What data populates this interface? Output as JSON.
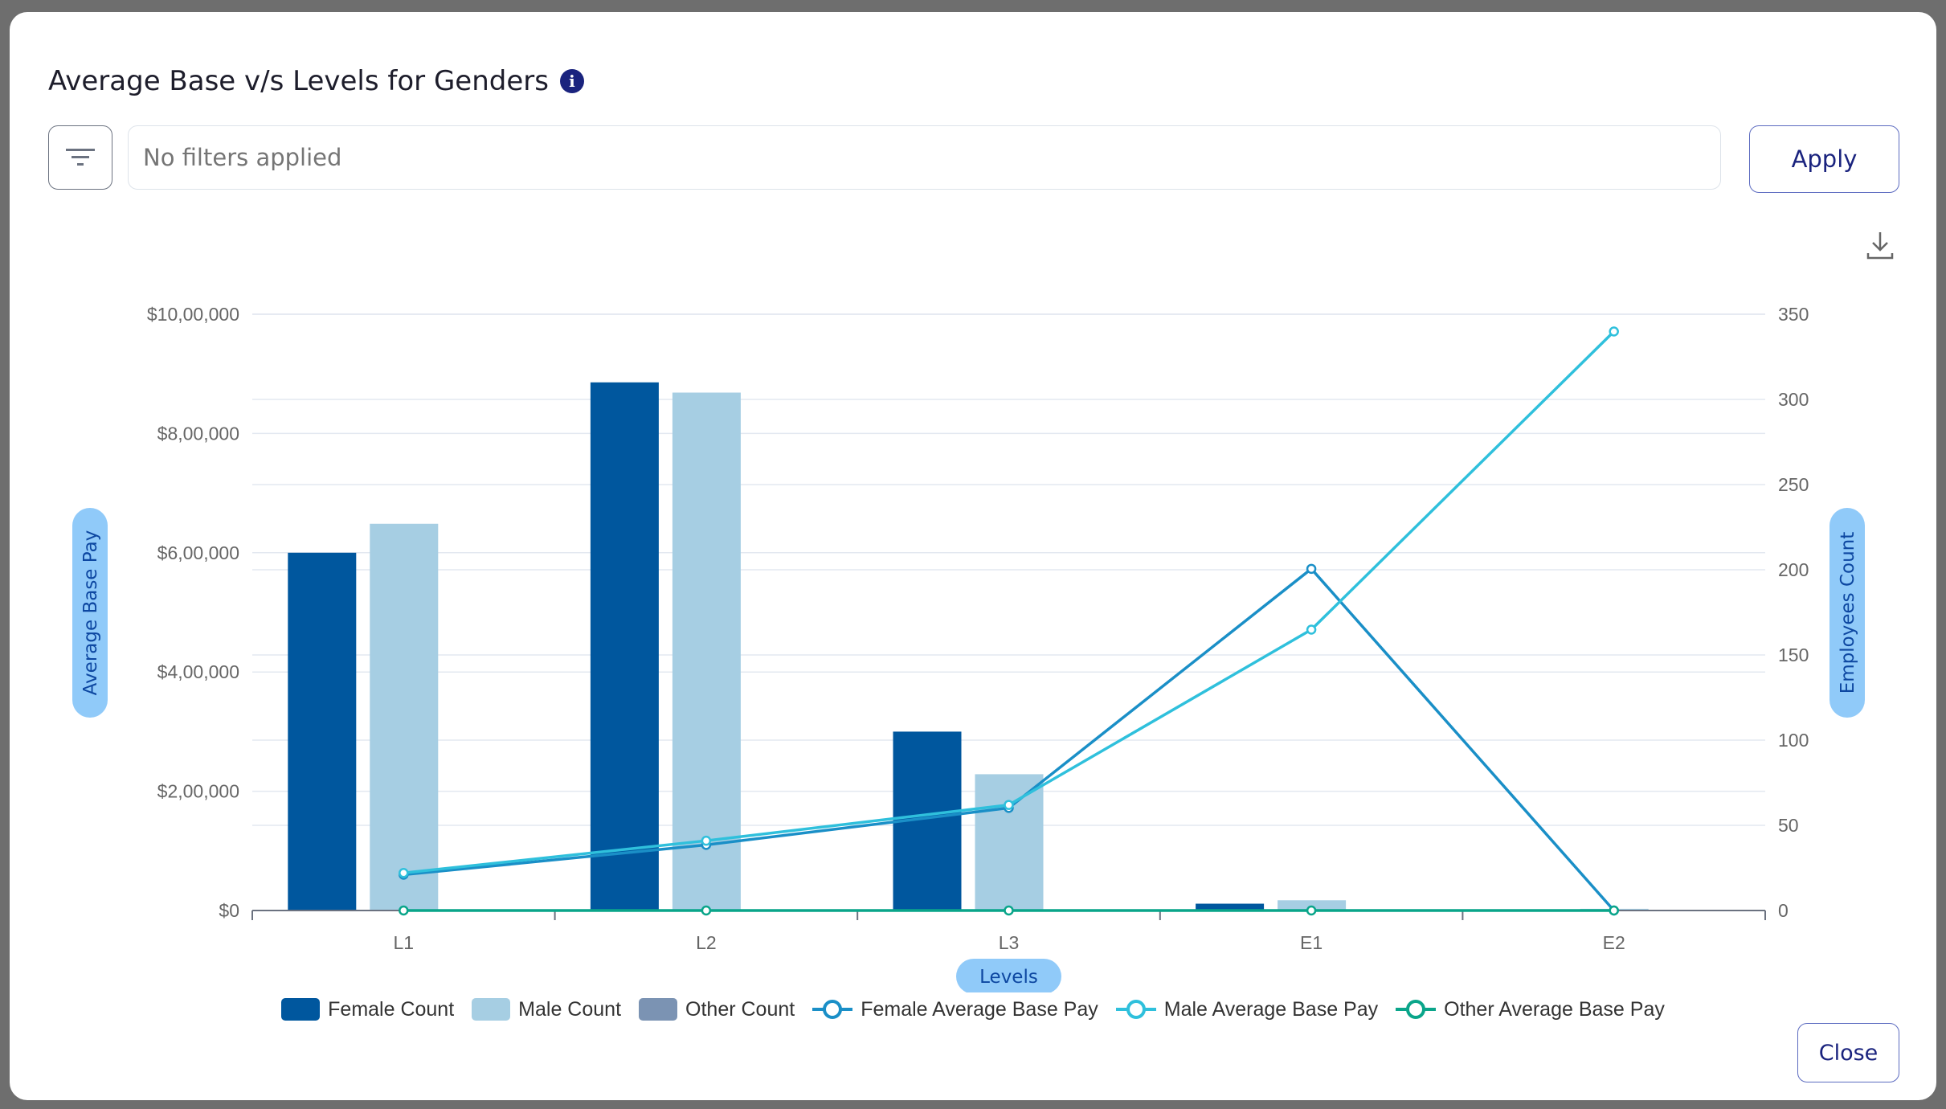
{
  "dialog": {
    "title": "Average Base v/s Levels for Genders",
    "info_icon": "info-icon",
    "filter_icon": "filter-icon",
    "filter_placeholder": "No filters applied",
    "apply_label": "Apply",
    "download_icon": "download-icon",
    "close_label": "Close"
  },
  "chart_data": {
    "type": "bar+line",
    "title": "Average Base v/s Levels for Genders",
    "xlabel": "Levels",
    "ylabel_left": "Average Base Pay",
    "ylabel_right": "Employees Count",
    "categories": [
      "L1",
      "L2",
      "L3",
      "E1",
      "E2"
    ],
    "ylim_left": [
      0,
      1000000
    ],
    "yticks_left": [
      "$0",
      "$2,00,000",
      "$4,00,000",
      "$6,00,000",
      "$8,00,000",
      "$10,00,000"
    ],
    "ylim_right": [
      0,
      350
    ],
    "yticks_right": [
      "0",
      "50",
      "100",
      "150",
      "200",
      "250",
      "300",
      "350"
    ],
    "grid": true,
    "legend_placement": "bottom",
    "bar_series": [
      {
        "name": "Female Count",
        "color": "#00579e",
        "values": [
          210,
          310,
          105,
          4,
          0
        ]
      },
      {
        "name": "Male Count",
        "color": "#a6cee3",
        "values": [
          227,
          304,
          80,
          6,
          1
        ]
      },
      {
        "name": "Other Count",
        "color": "#7b93b3",
        "values": [
          0,
          0,
          0,
          0,
          0
        ]
      }
    ],
    "line_series": [
      {
        "name": "Female Average Base Pay",
        "color": "#1a8fc7",
        "values": [
          60000,
          110000,
          172000,
          573000,
          0
        ]
      },
      {
        "name": "Male Average Base Pay",
        "color": "#2fc0dc",
        "values": [
          63000,
          117000,
          177000,
          471000,
          971000
        ]
      },
      {
        "name": "Other Average Base Pay",
        "color": "#0aa58a",
        "values": [
          0,
          0,
          0,
          0,
          0
        ]
      }
    ]
  }
}
